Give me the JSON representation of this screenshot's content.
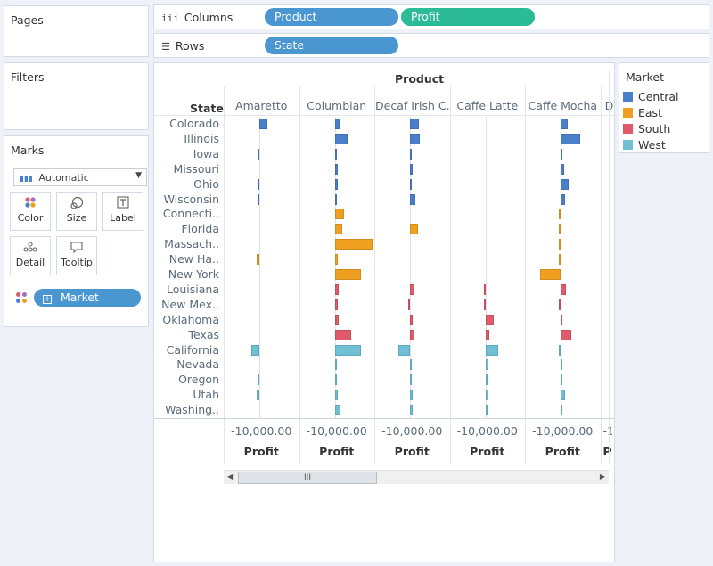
{
  "panels": {
    "pages": "Pages",
    "filters": "Filters",
    "marks": "Marks"
  },
  "shelves": {
    "columns_label": "Columns",
    "rows_label": "Rows",
    "columns_pills": [
      "Product",
      "Profit"
    ],
    "rows_pills": [
      "State"
    ]
  },
  "marks": {
    "type": "Automatic",
    "buttons": [
      "Color",
      "Size",
      "Label",
      "Detail",
      "Tooltip"
    ],
    "color_field": "Market"
  },
  "legend": {
    "title": "Market",
    "items": [
      {
        "label": "Central",
        "color": "#4a7fcb"
      },
      {
        "label": "East",
        "color": "#f0a020"
      },
      {
        "label": "South",
        "color": "#e05a6a"
      },
      {
        "label": "West",
        "color": "#6fbfd5"
      }
    ]
  },
  "viz": {
    "header_title": "Product",
    "row_header": "State",
    "axis_tick": "-10,000.00",
    "axis_label": "Profit",
    "partial_header": "D",
    "partial_tick": "-1",
    "partial_axis": "P",
    "scroll_thumb": "III"
  },
  "chart_data": {
    "type": "bar",
    "title": "Product",
    "xlabel": "Profit",
    "ylabel": "State",
    "columns": [
      "Amaretto",
      "Columbian",
      "Decaf Irish C..",
      "Caffe Latte",
      "Caffe Mocha"
    ],
    "rows": [
      {
        "state": "Colorado",
        "market": "Central",
        "values": [
          2200,
          1300,
          2300,
          0,
          1800
        ]
      },
      {
        "state": "Illinois",
        "market": "Central",
        "values": [
          0,
          3300,
          2500,
          0,
          5200
        ]
      },
      {
        "state": "Iowa",
        "market": "Central",
        "values": [
          -200,
          200,
          300,
          0,
          300
        ]
      },
      {
        "state": "Missouri",
        "market": "Central",
        "values": [
          0,
          900,
          800,
          0,
          900
        ]
      },
      {
        "state": "Ohio",
        "market": "Central",
        "values": [
          -300,
          700,
          500,
          0,
          2100
        ]
      },
      {
        "state": "Wisconsin",
        "market": "Central",
        "values": [
          -200,
          600,
          1400,
          0,
          1200
        ]
      },
      {
        "state": "Connecti..",
        "market": "East",
        "values": [
          0,
          2500,
          0,
          0,
          -100
        ]
      },
      {
        "state": "Florida",
        "market": "East",
        "values": [
          0,
          1900,
          2200,
          0,
          -200
        ]
      },
      {
        "state": "Massach..",
        "market": "East",
        "values": [
          0,
          9800,
          0,
          0,
          -300
        ]
      },
      {
        "state": "New Ha..",
        "market": "East",
        "values": [
          -700,
          800,
          0,
          0,
          -200
        ]
      },
      {
        "state": "New York",
        "market": "East",
        "values": [
          0,
          6800,
          0,
          0,
          -5300
        ]
      },
      {
        "state": "Louisiana",
        "market": "South",
        "values": [
          0,
          1000,
          1100,
          -100,
          1300
        ]
      },
      {
        "state": "New Mex..",
        "market": "South",
        "values": [
          0,
          900,
          -500,
          -200,
          -200
        ]
      },
      {
        "state": "Oklahoma",
        "market": "South",
        "values": [
          0,
          1000,
          700,
          2200,
          500
        ]
      },
      {
        "state": "Texas",
        "market": "South",
        "values": [
          0,
          4300,
          1200,
          1100,
          2700
        ]
      },
      {
        "state": "California",
        "market": "West",
        "values": [
          -2000,
          6800,
          -3000,
          3400,
          -400
        ]
      },
      {
        "state": "Nevada",
        "market": "West",
        "values": [
          0,
          500,
          200,
          800,
          300
        ]
      },
      {
        "state": "Oregon",
        "market": "West",
        "values": [
          -200,
          400,
          400,
          300,
          400
        ]
      },
      {
        "state": "Utah",
        "market": "West",
        "values": [
          -800,
          700,
          600,
          700,
          1200
        ]
      },
      {
        "state": "Washing..",
        "market": "West",
        "values": [
          0,
          1500,
          700,
          600,
          400
        ]
      }
    ],
    "axis_tick": -10000
  }
}
